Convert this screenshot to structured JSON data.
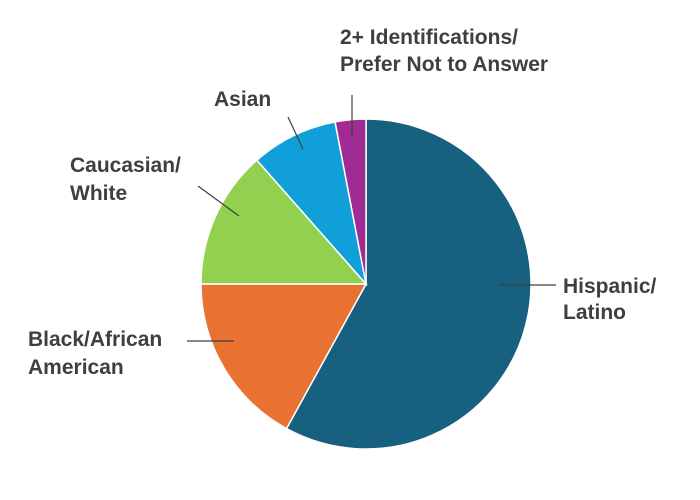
{
  "chart_data": {
    "type": "pie",
    "title": "",
    "series": [
      {
        "values": [
          {
            "label": [
              "Hispanic/",
              "Latino"
            ],
            "value": 58.0,
            "color": "#17607f"
          },
          {
            "label": [
              "Black/African",
              "American"
            ],
            "value": 17.0,
            "color": "#e97132"
          },
          {
            "label": [
              "Caucasian/",
              "White"
            ],
            "value": 13.5,
            "color": "#92d050"
          },
          {
            "label": [
              "Asian"
            ],
            "value": 8.5,
            "color": "#119fd9"
          },
          {
            "label": [
              "2+ Identifications/",
              "Prefer Not to Answer"
            ],
            "value": 3.0,
            "color": "#a02b93"
          }
        ]
      }
    ],
    "start_angle": "12 o'clock",
    "direction": "clockwise",
    "legend": "none",
    "labels": "outside with leader lines"
  }
}
